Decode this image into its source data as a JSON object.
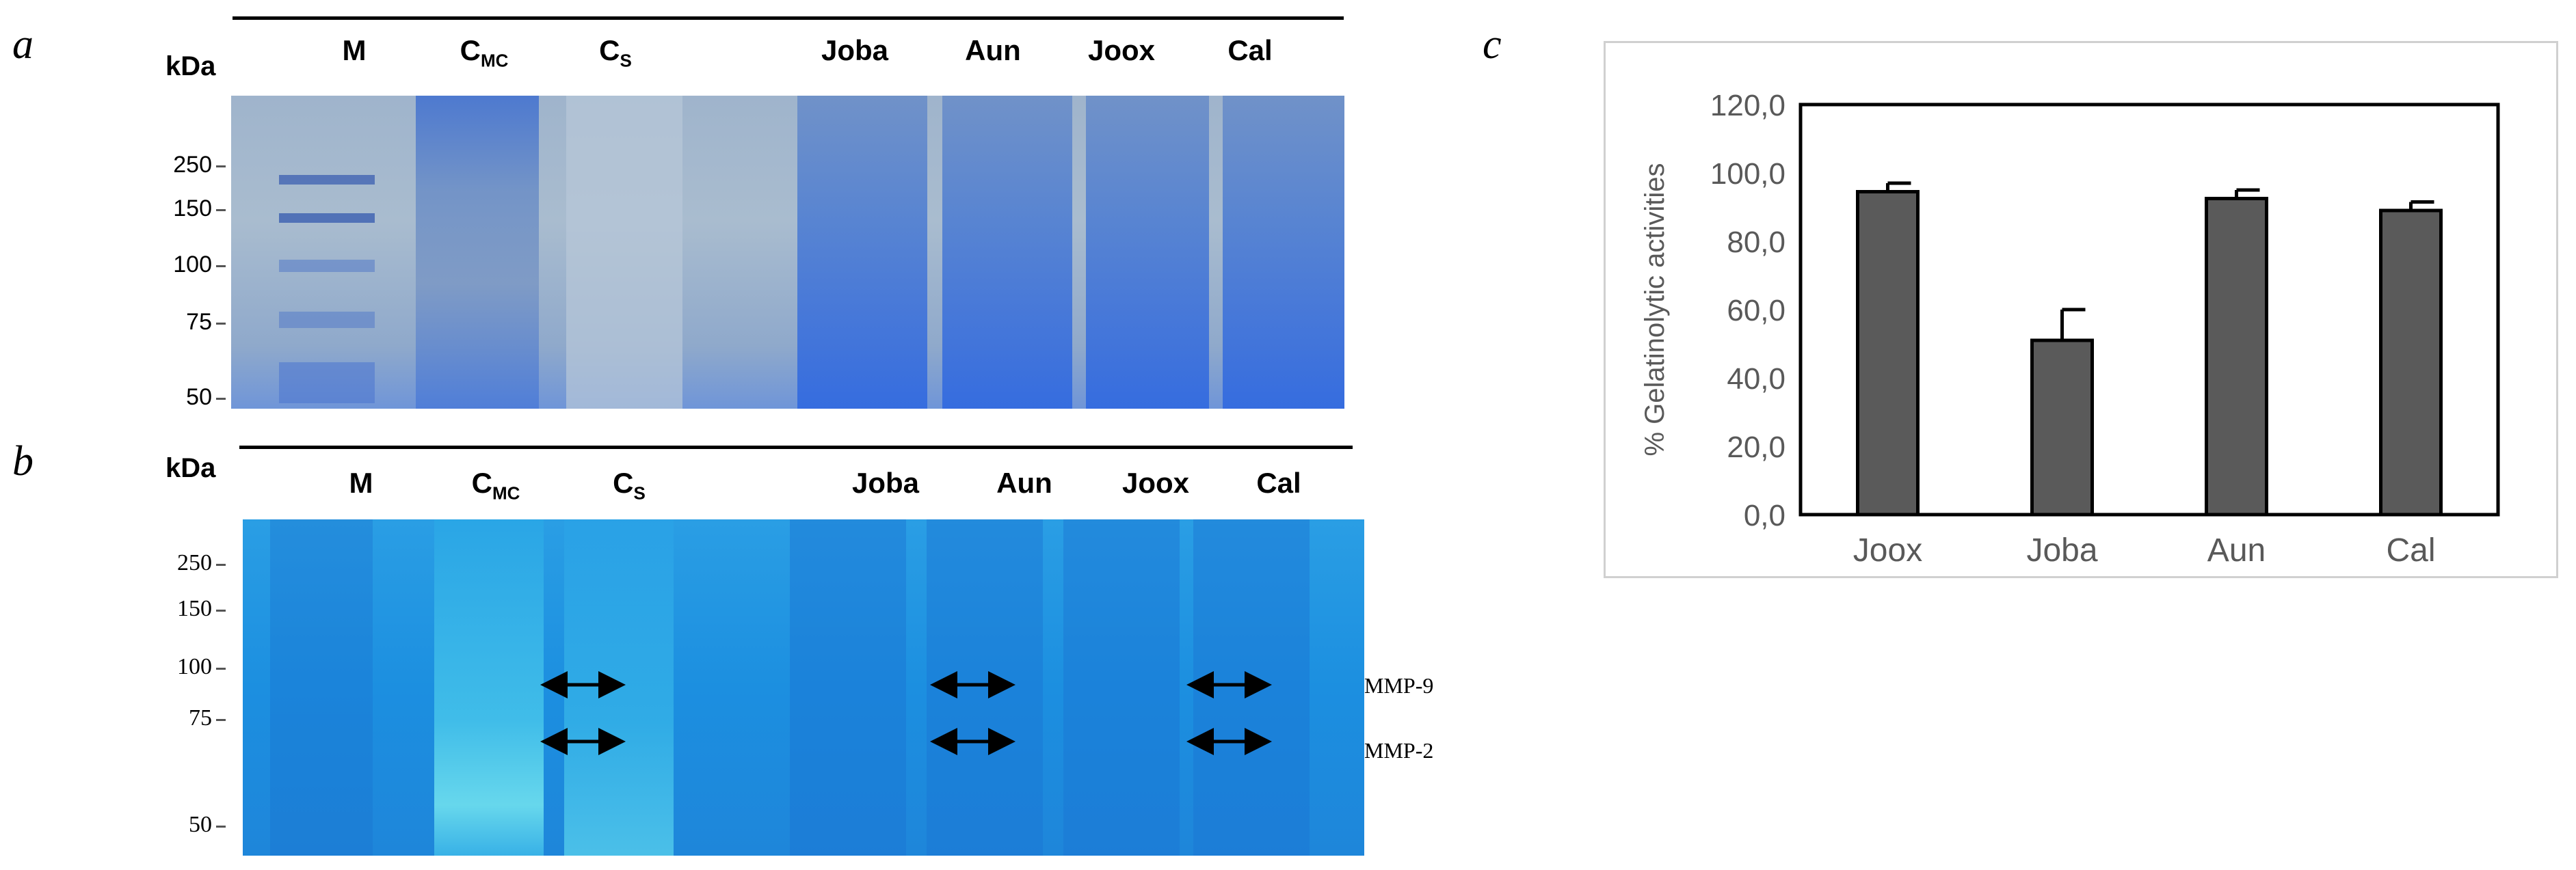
{
  "panel_a": {
    "letter": "a",
    "kda_label": "kDa",
    "lanes": [
      {
        "main": "M",
        "sub": ""
      },
      {
        "main": "C",
        "sub": "MC"
      },
      {
        "main": "C",
        "sub": "S"
      },
      {
        "main": "Joba",
        "sub": ""
      },
      {
        "main": "Aun",
        "sub": ""
      },
      {
        "main": "Joox",
        "sub": ""
      },
      {
        "main": "Cal",
        "sub": ""
      }
    ],
    "markers": [
      "250",
      "150",
      "100",
      "75",
      "50"
    ]
  },
  "panel_b": {
    "letter": "b",
    "kda_label": "kDa",
    "lanes": [
      {
        "main": "M",
        "sub": ""
      },
      {
        "main": "C",
        "sub": "MC"
      },
      {
        "main": "C",
        "sub": "S"
      },
      {
        "main": "Joba",
        "sub": ""
      },
      {
        "main": "Aun",
        "sub": ""
      },
      {
        "main": "Joox",
        "sub": ""
      },
      {
        "main": "Cal",
        "sub": ""
      }
    ],
    "markers": [
      "250",
      "150",
      "100",
      "75",
      "50"
    ],
    "bands": [
      "MMP-9",
      "MMP-2"
    ]
  },
  "panel_c": {
    "letter": "c"
  },
  "colors": {
    "bar_fill": "#5a5a5a",
    "bar_stroke": "#000000",
    "gel_a": "#9fb4cc",
    "gel_b": "#1f8fe0"
  },
  "chart_data": {
    "type": "bar",
    "categories": [
      "Joox",
      "Joba",
      "Aun",
      "Cal"
    ],
    "values": [
      94.5,
      51.0,
      92.5,
      89.0
    ],
    "errors": [
      2.5,
      9.0,
      2.5,
      2.5
    ],
    "ylabel": "% Gelatinolytic activities",
    "ylim": [
      0,
      120
    ],
    "yticks": [
      "0,0",
      "20,0",
      "40,0",
      "60,0",
      "80,0",
      "100,0",
      "120,0"
    ],
    "grid": false
  }
}
